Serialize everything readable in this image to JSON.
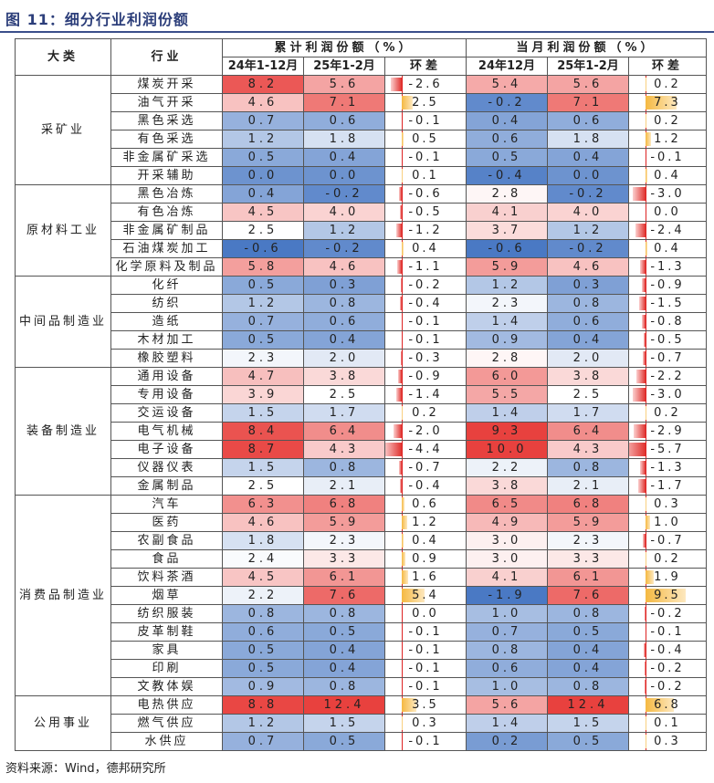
{
  "title": "图 11：细分行业利润份额",
  "source": "资料来源：Wind，德邦研究所",
  "headers": {
    "category": "大类",
    "industry": "行业",
    "cumulative_group": "累计利润份额（%）",
    "monthly_group": "当月利润份额（%）",
    "cum_a": "24年1-12月",
    "cum_b": "25年1-2月",
    "cum_diff": "环差",
    "mon_a": "24年12月",
    "mon_b": "25年1-2月",
    "mon_diff": "环差"
  },
  "colors": {
    "positive_diff": "#e0322f",
    "negative_diff_bar": "#f5b942",
    "high": "#e8413e",
    "low": "#4a79c4"
  },
  "groups": [
    {
      "name": "采矿业",
      "rows": [
        {
          "industry": "煤炭开采",
          "cum_a": "8.2",
          "cum_b": "5.6",
          "cum_diff": "-2.6",
          "mon_a": "5.4",
          "mon_b": "5.6",
          "mon_diff": "0.2"
        },
        {
          "industry": "油气开采",
          "cum_a": "4.6",
          "cum_b": "7.1",
          "cum_diff": "2.5",
          "mon_a": "-0.2",
          "mon_b": "7.1",
          "mon_diff": "7.3"
        },
        {
          "industry": "黑色采选",
          "cum_a": "0.7",
          "cum_b": "0.6",
          "cum_diff": "-0.1",
          "mon_a": "0.4",
          "mon_b": "0.6",
          "mon_diff": "0.2"
        },
        {
          "industry": "有色采选",
          "cum_a": "1.2",
          "cum_b": "1.8",
          "cum_diff": "0.5",
          "mon_a": "0.6",
          "mon_b": "1.8",
          "mon_diff": "1.2"
        },
        {
          "industry": "非金属矿采选",
          "cum_a": "0.5",
          "cum_b": "0.4",
          "cum_diff": "-0.1",
          "mon_a": "0.5",
          "mon_b": "0.4",
          "mon_diff": "-0.1"
        },
        {
          "industry": "开采辅助",
          "cum_a": "0.0",
          "cum_b": "0.0",
          "cum_diff": "0.1",
          "mon_a": "-0.4",
          "mon_b": "0.0",
          "mon_diff": "0.4"
        }
      ]
    },
    {
      "name": "原材料工业",
      "rows": [
        {
          "industry": "黑色冶炼",
          "cum_a": "0.4",
          "cum_b": "-0.2",
          "cum_diff": "-0.6",
          "mon_a": "2.8",
          "mon_b": "-0.2",
          "mon_diff": "-3.0"
        },
        {
          "industry": "有色冶炼",
          "cum_a": "4.5",
          "cum_b": "4.0",
          "cum_diff": "-0.5",
          "mon_a": "4.1",
          "mon_b": "4.0",
          "mon_diff": "0.0"
        },
        {
          "industry": "非金属矿制品",
          "cum_a": "2.5",
          "cum_b": "1.2",
          "cum_diff": "-1.2",
          "mon_a": "3.7",
          "mon_b": "1.2",
          "mon_diff": "-2.4"
        },
        {
          "industry": "石油煤炭加工",
          "cum_a": "-0.6",
          "cum_b": "-0.2",
          "cum_diff": "0.4",
          "mon_a": "-0.6",
          "mon_b": "-0.2",
          "mon_diff": "0.4"
        },
        {
          "industry": "化学原料及制品",
          "cum_a": "5.8",
          "cum_b": "4.6",
          "cum_diff": "-1.1",
          "mon_a": "5.9",
          "mon_b": "4.6",
          "mon_diff": "-1.3"
        }
      ]
    },
    {
      "name": "中间品制造业",
      "rows": [
        {
          "industry": "化纤",
          "cum_a": "0.5",
          "cum_b": "0.3",
          "cum_diff": "-0.2",
          "mon_a": "1.2",
          "mon_b": "0.3",
          "mon_diff": "-0.9"
        },
        {
          "industry": "纺织",
          "cum_a": "1.2",
          "cum_b": "0.8",
          "cum_diff": "-0.4",
          "mon_a": "2.3",
          "mon_b": "0.8",
          "mon_diff": "-1.5"
        },
        {
          "industry": "造纸",
          "cum_a": "0.7",
          "cum_b": "0.6",
          "cum_diff": "-0.1",
          "mon_a": "1.4",
          "mon_b": "0.6",
          "mon_diff": "-0.8"
        },
        {
          "industry": "木材加工",
          "cum_a": "0.5",
          "cum_b": "0.4",
          "cum_diff": "-0.1",
          "mon_a": "0.9",
          "mon_b": "0.4",
          "mon_diff": "-0.5"
        },
        {
          "industry": "橡胶塑料",
          "cum_a": "2.3",
          "cum_b": "2.0",
          "cum_diff": "-0.3",
          "mon_a": "2.8",
          "mon_b": "2.0",
          "mon_diff": "-0.7"
        }
      ]
    },
    {
      "name": "装备制造业",
      "rows": [
        {
          "industry": "通用设备",
          "cum_a": "4.7",
          "cum_b": "3.8",
          "cum_diff": "-0.9",
          "mon_a": "6.0",
          "mon_b": "3.8",
          "mon_diff": "-2.2"
        },
        {
          "industry": "专用设备",
          "cum_a": "3.9",
          "cum_b": "2.5",
          "cum_diff": "-1.4",
          "mon_a": "5.5",
          "mon_b": "2.5",
          "mon_diff": "-3.0"
        },
        {
          "industry": "交运设备",
          "cum_a": "1.5",
          "cum_b": "1.7",
          "cum_diff": "0.2",
          "mon_a": "1.4",
          "mon_b": "1.7",
          "mon_diff": "0.2"
        },
        {
          "industry": "电气机械",
          "cum_a": "8.4",
          "cum_b": "6.4",
          "cum_diff": "-2.0",
          "mon_a": "9.3",
          "mon_b": "6.4",
          "mon_diff": "-2.9"
        },
        {
          "industry": "电子设备",
          "cum_a": "8.7",
          "cum_b": "4.3",
          "cum_diff": "-4.4",
          "mon_a": "10.0",
          "mon_b": "4.3",
          "mon_diff": "-5.7"
        },
        {
          "industry": "仪器仪表",
          "cum_a": "1.5",
          "cum_b": "0.8",
          "cum_diff": "-0.7",
          "mon_a": "2.2",
          "mon_b": "0.8",
          "mon_diff": "-1.3"
        },
        {
          "industry": "金属制品",
          "cum_a": "2.5",
          "cum_b": "2.1",
          "cum_diff": "-0.4",
          "mon_a": "3.8",
          "mon_b": "2.1",
          "mon_diff": "-1.7"
        }
      ]
    },
    {
      "name": "消费品制造业",
      "rows": [
        {
          "industry": "汽车",
          "cum_a": "6.3",
          "cum_b": "6.8",
          "cum_diff": "0.6",
          "mon_a": "6.5",
          "mon_b": "6.8",
          "mon_diff": "0.3"
        },
        {
          "industry": "医药",
          "cum_a": "4.6",
          "cum_b": "5.9",
          "cum_diff": "1.2",
          "mon_a": "4.9",
          "mon_b": "5.9",
          "mon_diff": "1.0"
        },
        {
          "industry": "农副食品",
          "cum_a": "1.8",
          "cum_b": "2.3",
          "cum_diff": "0.4",
          "mon_a": "3.0",
          "mon_b": "2.3",
          "mon_diff": "-0.7"
        },
        {
          "industry": "食品",
          "cum_a": "2.4",
          "cum_b": "3.3",
          "cum_diff": "0.9",
          "mon_a": "3.0",
          "mon_b": "3.3",
          "mon_diff": "0.2"
        },
        {
          "industry": "饮料茶酒",
          "cum_a": "4.5",
          "cum_b": "6.1",
          "cum_diff": "1.6",
          "mon_a": "4.1",
          "mon_b": "6.1",
          "mon_diff": "1.9"
        },
        {
          "industry": "烟草",
          "cum_a": "2.2",
          "cum_b": "7.6",
          "cum_diff": "5.4",
          "mon_a": "-1.9",
          "mon_b": "7.6",
          "mon_diff": "9.5"
        },
        {
          "industry": "纺织服装",
          "cum_a": "0.8",
          "cum_b": "0.8",
          "cum_diff": "0.0",
          "mon_a": "1.0",
          "mon_b": "0.8",
          "mon_diff": "-0.2"
        },
        {
          "industry": "皮革制鞋",
          "cum_a": "0.6",
          "cum_b": "0.5",
          "cum_diff": "-0.1",
          "mon_a": "0.7",
          "mon_b": "0.5",
          "mon_diff": "-0.1"
        },
        {
          "industry": "家具",
          "cum_a": "0.5",
          "cum_b": "0.4",
          "cum_diff": "-0.1",
          "mon_a": "0.8",
          "mon_b": "0.4",
          "mon_diff": "-0.4"
        },
        {
          "industry": "印刷",
          "cum_a": "0.5",
          "cum_b": "0.4",
          "cum_diff": "-0.1",
          "mon_a": "0.6",
          "mon_b": "0.4",
          "mon_diff": "-0.2"
        },
        {
          "industry": "文教体娱",
          "cum_a": "0.9",
          "cum_b": "0.8",
          "cum_diff": "-0.1",
          "mon_a": "1.0",
          "mon_b": "0.8",
          "mon_diff": "-0.2"
        }
      ]
    },
    {
      "name": "公用事业",
      "rows": [
        {
          "industry": "电热供应",
          "cum_a": "8.8",
          "cum_b": "12.4",
          "cum_diff": "3.5",
          "mon_a": "5.6",
          "mon_b": "12.4",
          "mon_diff": "6.8"
        },
        {
          "industry": "燃气供应",
          "cum_a": "1.2",
          "cum_b": "1.5",
          "cum_diff": "0.3",
          "mon_a": "1.4",
          "mon_b": "1.5",
          "mon_diff": "0.1"
        },
        {
          "industry": "水供应",
          "cum_a": "0.7",
          "cum_b": "0.5",
          "cum_diff": "-0.1",
          "mon_a": "0.2",
          "mon_b": "0.5",
          "mon_diff": "0.3"
        }
      ]
    }
  ]
}
